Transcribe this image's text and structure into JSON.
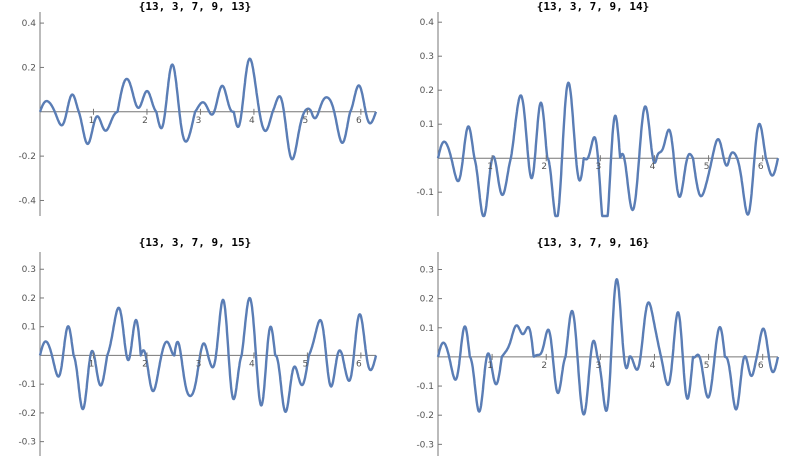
{
  "chart_data": [
    {
      "type": "line",
      "title": "{13, 3, 7, 9, 13}",
      "coeffs": [
        13,
        3,
        7,
        9,
        13
      ],
      "xlim": [
        0,
        6.283
      ],
      "ylim": [
        -0.47,
        0.45
      ],
      "xticks": [
        1,
        2,
        3,
        4,
        5,
        6
      ],
      "yticks": [
        -0.4,
        -0.2,
        0.2,
        0.4
      ],
      "ytick_labels": [
        "-0.4",
        "-0.2",
        "0.2",
        "0.4"
      ],
      "series": [
        {
          "color": "#5a7db5"
        }
      ]
    },
    {
      "type": "line",
      "title": "{13, 3, 7, 9, 14}",
      "coeffs": [
        13,
        3,
        7,
        9,
        14
      ],
      "xlim": [
        0,
        6.283
      ],
      "ylim": [
        -0.17,
        0.43
      ],
      "xticks": [
        1,
        2,
        3,
        4,
        5,
        6
      ],
      "yticks": [
        -0.1,
        0.1,
        0.2,
        0.3,
        0.4
      ],
      "ytick_labels": [
        "-0.1",
        "0.1",
        "0.2",
        "0.3",
        "0.4"
      ],
      "series": [
        {
          "color": "#5a7db5"
        }
      ]
    },
    {
      "type": "line",
      "title": "{13, 3, 7, 9, 15}",
      "coeffs": [
        13,
        3,
        7,
        9,
        15
      ],
      "xlim": [
        0,
        6.283
      ],
      "ylim": [
        -0.35,
        0.36
      ],
      "xticks": [
        1,
        2,
        3,
        4,
        5,
        6
      ],
      "yticks": [
        -0.3,
        -0.2,
        -0.1,
        0.1,
        0.2,
        0.3
      ],
      "ytick_labels": [
        "-0.3",
        "-0.2",
        "-0.1",
        "0.1",
        "0.2",
        "0.3"
      ],
      "series": [
        {
          "color": "#5a7db5"
        }
      ]
    },
    {
      "type": "line",
      "title": "{13, 3, 7, 9, 16}",
      "coeffs": [
        13,
        3,
        7,
        9,
        16
      ],
      "xlim": [
        0,
        6.283
      ],
      "ylim": [
        -0.34,
        0.36
      ],
      "xticks": [
        1,
        2,
        3,
        4,
        5,
        6
      ],
      "yticks": [
        -0.3,
        -0.2,
        -0.1,
        0.1,
        0.2,
        0.3
      ],
      "ytick_labels": [
        "-0.3",
        "-0.2",
        "-0.1",
        "0.1",
        "0.2",
        "0.3"
      ],
      "series": [
        {
          "color": "#5a7db5"
        }
      ]
    }
  ]
}
